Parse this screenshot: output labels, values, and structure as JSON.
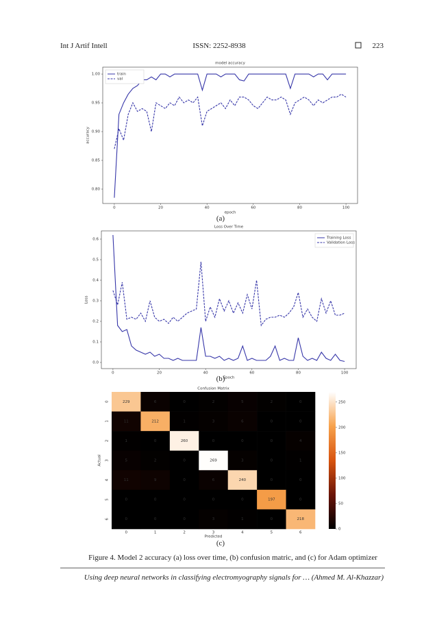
{
  "header": {
    "journal": "Int J Artif Intell",
    "issn": "ISSN: 2252-8938",
    "page": "223"
  },
  "chart_data": [
    {
      "type": "line",
      "title": "model accuracy",
      "x_label": "epoch",
      "y_label": "accuracy",
      "x": [
        0,
        2,
        4,
        6,
        8,
        10,
        12,
        14,
        16,
        18,
        20,
        22,
        24,
        26,
        28,
        30,
        32,
        34,
        36,
        38,
        40,
        42,
        44,
        46,
        48,
        50,
        52,
        54,
        56,
        58,
        60,
        62,
        64,
        66,
        68,
        70,
        72,
        74,
        76,
        78,
        80,
        82,
        84,
        86,
        88,
        90,
        92,
        94,
        96,
        98,
        100
      ],
      "series": [
        {
          "name": "train",
          "color": "#3535a8",
          "dash": false,
          "values": [
            0.785,
            0.93,
            0.95,
            0.965,
            0.975,
            0.98,
            0.99,
            0.99,
            0.995,
            0.99,
            1.0,
            1.0,
            0.995,
            1.0,
            1.0,
            1.0,
            1.0,
            1.0,
            1.0,
            0.972,
            1.0,
            1.0,
            1.0,
            0.995,
            1.0,
            1.0,
            1.0,
            0.99,
            0.988,
            1.0,
            1.0,
            1.0,
            1.0,
            1.0,
            1.0,
            1.0,
            1.0,
            1.0,
            0.975,
            1.0,
            1.0,
            1.0,
            1.0,
            0.995,
            1.0,
            1.0,
            0.99,
            1.0,
            1.0,
            1.0,
            1.0
          ]
        },
        {
          "name": "val",
          "color": "#3535a8",
          "dash": true,
          "values": [
            0.87,
            0.905,
            0.885,
            0.93,
            0.95,
            0.935,
            0.94,
            0.935,
            0.9,
            0.95,
            0.945,
            0.94,
            0.95,
            0.945,
            0.96,
            0.95,
            0.955,
            0.95,
            0.96,
            0.91,
            0.935,
            0.94,
            0.945,
            0.95,
            0.94,
            0.955,
            0.945,
            0.96,
            0.96,
            0.955,
            0.945,
            0.94,
            0.95,
            0.96,
            0.955,
            0.955,
            0.96,
            0.955,
            0.93,
            0.95,
            0.955,
            0.96,
            0.955,
            0.945,
            0.955,
            0.95,
            0.955,
            0.96,
            0.96,
            0.965,
            0.96
          ]
        }
      ],
      "xlim": [
        -5,
        105
      ],
      "xticks": [
        0,
        20,
        40,
        60,
        80,
        100
      ],
      "ylim": [
        0.775,
        1.012
      ],
      "yticks": [
        {
          "value": 0.8,
          "label": "0.80"
        },
        0.85,
        {
          "value": 0.9,
          "label": "0.90"
        },
        0.95,
        {
          "value": 1.0,
          "label": "1.00"
        }
      ],
      "legend": "upper left"
    },
    {
      "type": "line",
      "title": "Loss Over Time",
      "x_label": "Epoch",
      "y_label": "Loss",
      "x": [
        0,
        2,
        4,
        6,
        8,
        10,
        12,
        14,
        16,
        18,
        20,
        22,
        24,
        26,
        28,
        30,
        32,
        34,
        36,
        38,
        40,
        42,
        44,
        46,
        48,
        50,
        52,
        54,
        56,
        58,
        60,
        62,
        64,
        66,
        68,
        70,
        72,
        74,
        76,
        78,
        80,
        82,
        84,
        86,
        88,
        90,
        92,
        94,
        96,
        98,
        100
      ],
      "series": [
        {
          "name": "Training Loss",
          "color": "#3535a8",
          "dash": false,
          "values": [
            0.62,
            0.18,
            0.15,
            0.16,
            0.08,
            0.06,
            0.05,
            0.04,
            0.05,
            0.03,
            0.04,
            0.02,
            0.02,
            0.01,
            0.02,
            0.01,
            0.01,
            0.01,
            0.01,
            0.17,
            0.03,
            0.03,
            0.02,
            0.03,
            0.01,
            0.02,
            0.01,
            0.02,
            0.08,
            0.01,
            0.02,
            0.01,
            0.01,
            0.01,
            0.03,
            0.08,
            0.01,
            0.02,
            0.01,
            0.01,
            0.12,
            0.03,
            0.01,
            0.02,
            0.01,
            0.05,
            0.02,
            0.01,
            0.04,
            0.01,
            0.005
          ]
        },
        {
          "name": "Validation Loss",
          "color": "#3535a8",
          "dash": true,
          "values": [
            0.35,
            0.28,
            0.39,
            0.21,
            0.22,
            0.21,
            0.24,
            0.2,
            0.3,
            0.22,
            0.2,
            0.21,
            0.19,
            0.22,
            0.2,
            0.22,
            0.24,
            0.25,
            0.26,
            0.49,
            0.2,
            0.27,
            0.22,
            0.31,
            0.25,
            0.3,
            0.24,
            0.29,
            0.24,
            0.33,
            0.26,
            0.4,
            0.18,
            0.21,
            0.22,
            0.22,
            0.23,
            0.22,
            0.24,
            0.27,
            0.34,
            0.22,
            0.26,
            0.22,
            0.2,
            0.31,
            0.24,
            0.3,
            0.23,
            0.23,
            0.24
          ]
        }
      ],
      "xlim": [
        -5,
        105
      ],
      "xticks": [
        0,
        20,
        40,
        60,
        80,
        100
      ],
      "ylim": [
        -0.03,
        0.64
      ],
      "yticks": [
        {
          "value": 0,
          "label": "0.0"
        },
        0.1,
        0.2,
        0.3,
        0.4,
        0.5,
        0.6
      ],
      "legend": "upper right"
    },
    {
      "type": "heatmap",
      "title": "Confusion Matrix",
      "x_label": "Predicted",
      "y_label": "Actual",
      "x_categories": [
        "0",
        "1",
        "2",
        "3",
        "4",
        "5",
        "6"
      ],
      "y_categories": [
        "0",
        "1",
        "2",
        "3",
        "4",
        "5",
        "6"
      ],
      "values": [
        [
          229,
          6,
          0,
          2,
          5,
          2,
          0
        ],
        [
          11,
          212,
          1,
          3,
          6,
          0,
          0
        ],
        [
          1,
          0,
          260,
          0,
          0,
          0,
          4
        ],
        [
          5,
          2,
          0,
          269,
          3,
          0,
          1
        ],
        [
          11,
          9,
          0,
          6,
          240,
          0,
          0
        ],
        [
          0,
          0,
          0,
          0,
          0,
          197,
          0
        ],
        [
          0,
          0,
          0,
          3,
          1,
          0,
          218
        ]
      ],
      "zlim": [
        0,
        270
      ],
      "zticks": [
        0,
        50,
        100,
        150,
        200,
        250
      ],
      "colormap": [
        "#000000",
        "#6b1408",
        "#d8540f",
        "#f7a24c",
        "#ffffff"
      ]
    }
  ],
  "subcaptions": [
    "(a)",
    "(b)",
    "(c)"
  ],
  "caption": "Figure 4. Model 2 accuracy (a) loss over time, (b) confusion matric, and (c) for Adam optimizer",
  "footer": "Using deep neural networks in classifying electromyography signals for … (Ahmed M. Al-Khazzar)"
}
